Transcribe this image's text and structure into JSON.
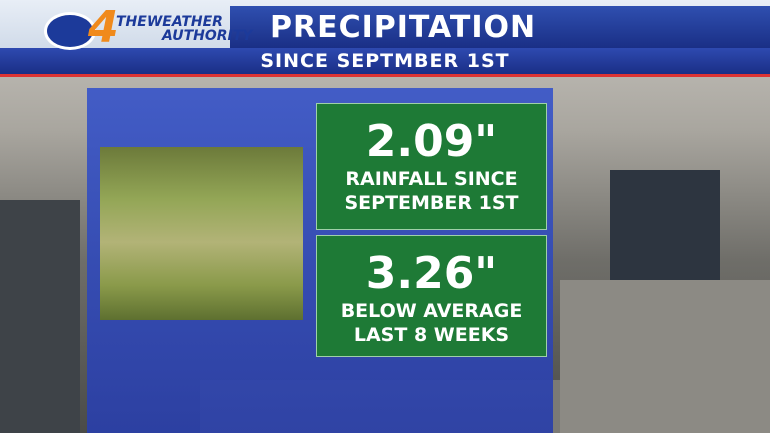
{
  "header": {
    "station": "4",
    "brand_line1": "THEWEATHER",
    "brand_line2": "AUTHORITY",
    "title": "PRECIPITATION",
    "subtitle": "SINCE SEPTMBER 1ST"
  },
  "stats": [
    {
      "value": "2.09\"",
      "line1": "RAINFALL SINCE",
      "line2": "SEPTEMBER 1ST"
    },
    {
      "value": "3.26\"",
      "line1": "BELOW AVERAGE",
      "line2": "LAST 8 WEEKS"
    }
  ]
}
